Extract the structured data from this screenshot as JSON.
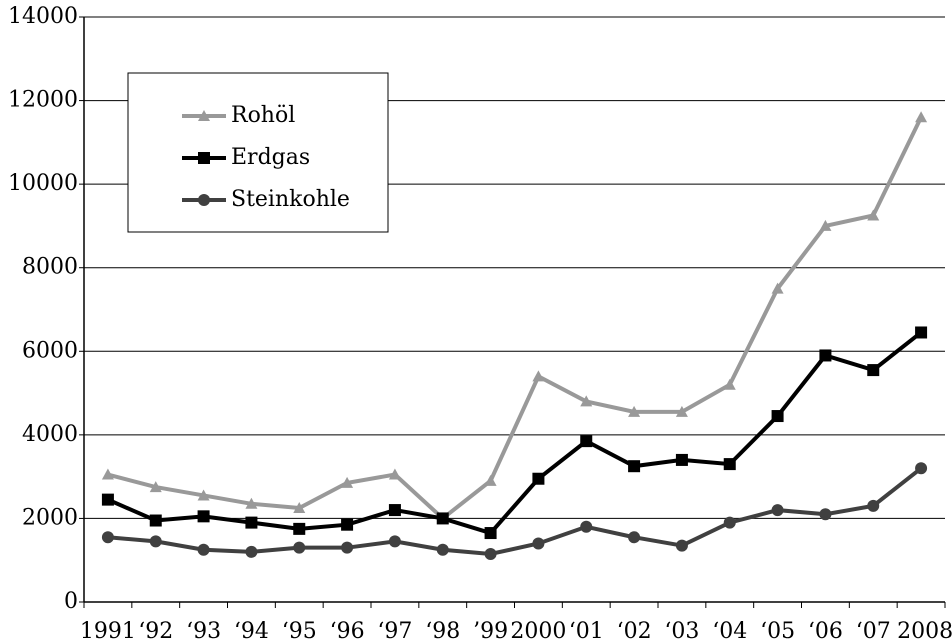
{
  "chart_data": {
    "type": "line",
    "categories": [
      "1991",
      "‘92",
      "‘93",
      "‘94",
      "‘95",
      "‘96",
      "‘97",
      "‘98",
      "’99",
      "2000",
      "‘01",
      "‘02",
      "‘03",
      "‘04",
      "‘05",
      "‘06",
      "‘07",
      "2008"
    ],
    "series": [
      {
        "name": "Rohöl",
        "color": "#999999",
        "marker": "triangle",
        "values": [
          3050,
          2750,
          2550,
          2350,
          2250,
          2850,
          3050,
          2000,
          2900,
          5400,
          4800,
          4550,
          4550,
          5200,
          7500,
          9000,
          9250,
          11600
        ]
      },
      {
        "name": "Erdgas",
        "color": "#000000",
        "marker": "square",
        "values": [
          2450,
          1950,
          2050,
          1900,
          1750,
          1850,
          2200,
          2000,
          1650,
          2950,
          3850,
          3250,
          3400,
          3300,
          4450,
          5900,
          5550,
          6450
        ]
      },
      {
        "name": "Steinkohle",
        "color": "#404040",
        "marker": "circle",
        "values": [
          1550,
          1450,
          1250,
          1200,
          1300,
          1300,
          1450,
          1250,
          1150,
          1400,
          1800,
          1550,
          1350,
          1900,
          2200,
          2100,
          2300,
          3200
        ]
      }
    ],
    "ylim": [
      0,
      14000
    ],
    "yticks": [
      0,
      2000,
      4000,
      6000,
      8000,
      10000,
      12000,
      14000
    ],
    "grid": true,
    "legend": "top-left"
  }
}
